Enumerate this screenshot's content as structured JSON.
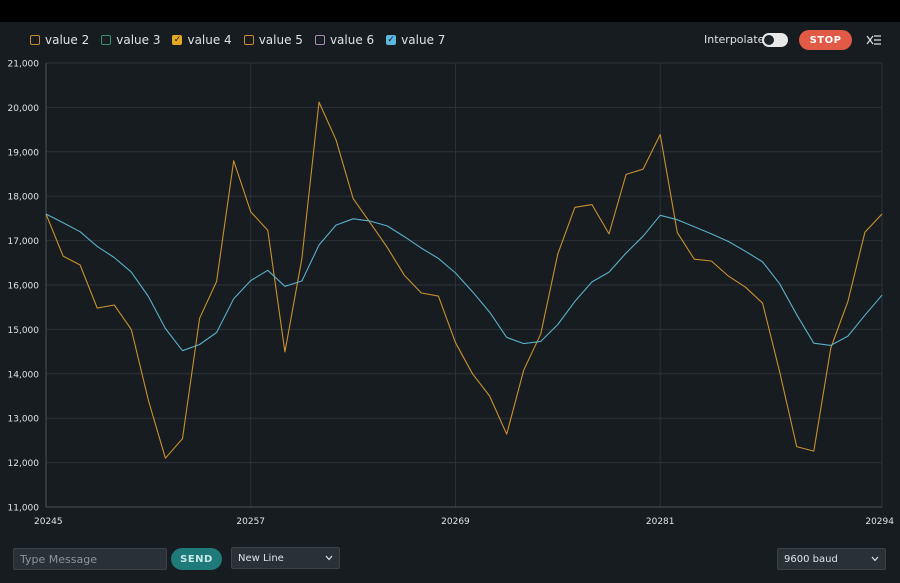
{
  "legend": [
    {
      "label": "value 2",
      "checked": false,
      "color": "#c8873a"
    },
    {
      "label": "value 3",
      "checked": false,
      "color": "#3f8f6d"
    },
    {
      "label": "value 4",
      "checked": true,
      "color": "#e5a823"
    },
    {
      "label": "value 5",
      "checked": false,
      "color": "#c8873a"
    },
    {
      "label": "value 6",
      "checked": false,
      "color": "#a98bb5"
    },
    {
      "label": "value 7",
      "checked": true,
      "color": "#5cb8e0"
    }
  ],
  "toolbar": {
    "interpolate_label": "Interpolate",
    "interpolate_on": false,
    "stop_label": "STOP"
  },
  "footer": {
    "message_placeholder": "Type Message",
    "send_label": "SEND",
    "line_ending": "New Line",
    "baud": "9600 baud"
  },
  "chart_data": {
    "type": "line",
    "xlim": [
      20245,
      20294
    ],
    "ylim": [
      11000,
      21000
    ],
    "x_ticks": [
      20245,
      20257,
      20269,
      20281,
      20294
    ],
    "y_ticks": [
      "11,000",
      "12,000",
      "13,000",
      "14,000",
      "15,000",
      "16,000",
      "17,000",
      "18,000",
      "19,000",
      "20,000",
      "21,000"
    ],
    "series": [
      {
        "color": "#c9902f",
        "values": [
          17600,
          16650,
          16450,
          15480,
          15550,
          15000,
          13400,
          12100,
          12540,
          15250,
          16080,
          18800,
          17650,
          17230,
          14490,
          16600,
          20120,
          19270,
          17950,
          17400,
          16850,
          16220,
          15820,
          15750,
          14700,
          14000,
          13500,
          12640,
          14080,
          14900,
          16700,
          17750,
          17810,
          17150,
          18490,
          18610,
          19390,
          17180,
          16580,
          16540,
          16200,
          15950,
          15590,
          14050,
          12360,
          12260,
          14580,
          15630,
          17190,
          17600
        ]
      },
      {
        "color": "#5aafc9",
        "values": [
          17600,
          17400,
          17200,
          16870,
          16620,
          16290,
          15740,
          15020,
          14520,
          14660,
          14930,
          15690,
          16100,
          16330,
          15970,
          16090,
          16900,
          17350,
          17490,
          17440,
          17330,
          17090,
          16830,
          16600,
          16270,
          15850,
          15390,
          14820,
          14680,
          14730,
          15110,
          15630,
          16070,
          16290,
          16720,
          17100,
          17570,
          17470,
          17310,
          17150,
          16980,
          16760,
          16520,
          16030,
          15330,
          14690,
          14640,
          14850,
          15320,
          15770
        ]
      }
    ]
  }
}
